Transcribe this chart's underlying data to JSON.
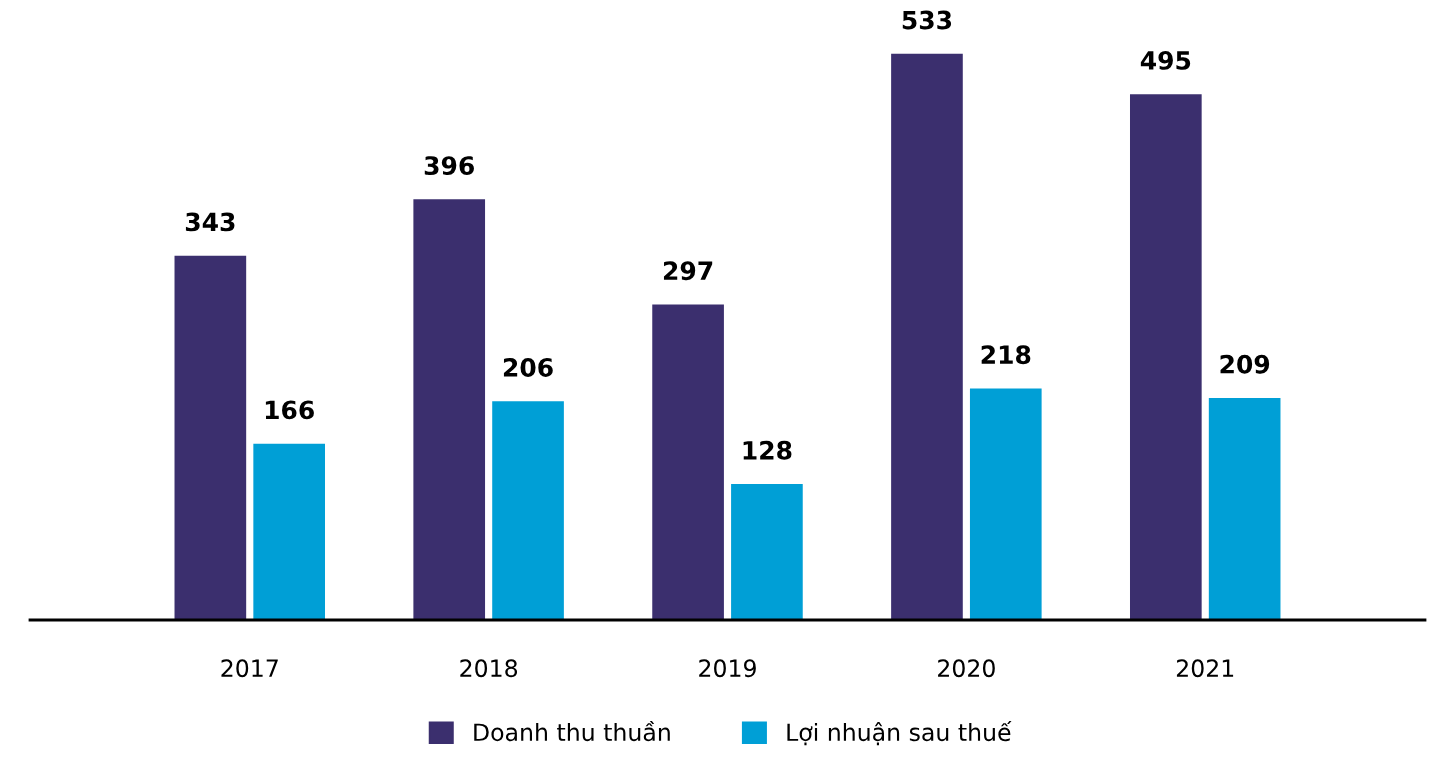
{
  "chart_data": {
    "type": "bar",
    "categories": [
      "2017",
      "2018",
      "2019",
      "2020",
      "2021"
    ],
    "series": [
      {
        "name": "Doanh thu thuần",
        "color": "#3b2f6e",
        "values": [
          343,
          396,
          297,
          533,
          495
        ]
      },
      {
        "name": "Lợi nhuận sau thuế",
        "color": "#009fd6",
        "values": [
          166,
          206,
          128,
          218,
          209
        ]
      }
    ],
    "data_labels": true,
    "legend": "bottom",
    "grid": false
  }
}
